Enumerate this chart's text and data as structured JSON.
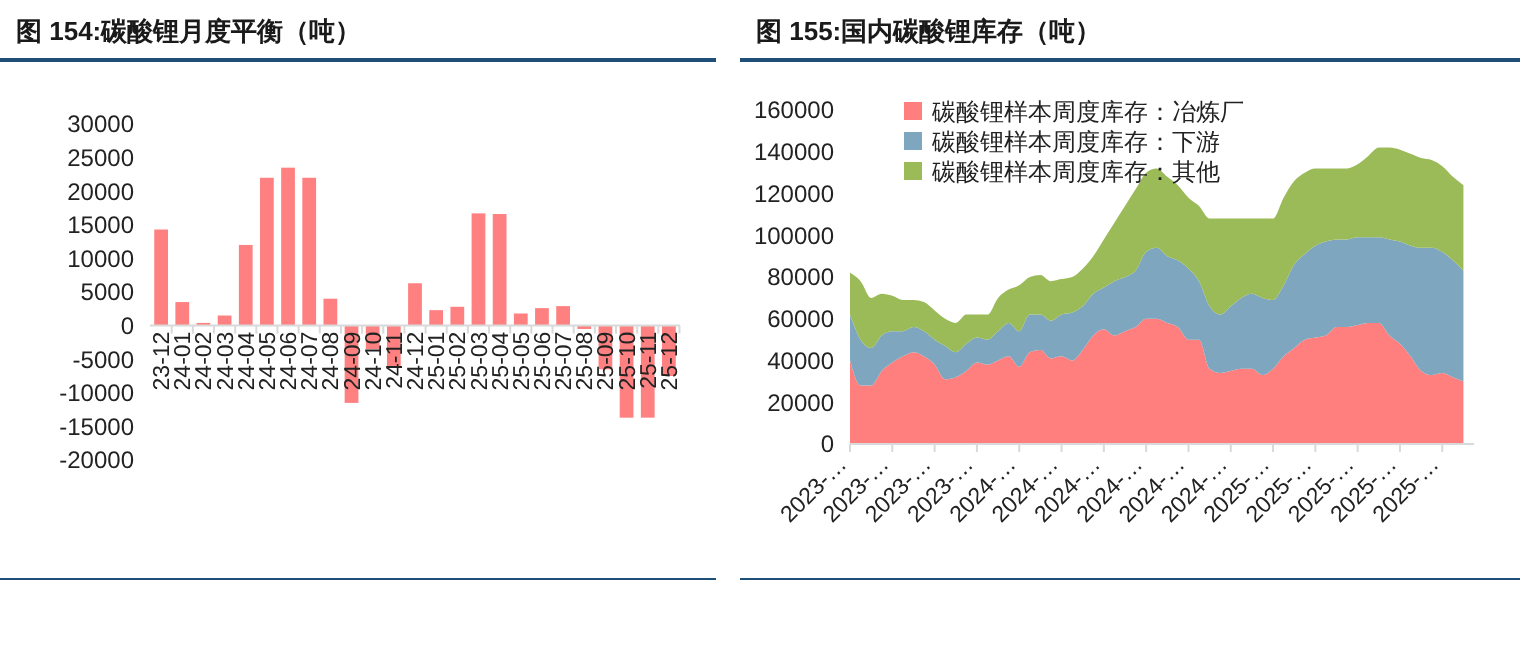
{
  "chart_data": [
    {
      "type": "bar",
      "title": "图 154:碳酸锂月度平衡（吨）",
      "categories": [
        "23-12",
        "24-01",
        "24-02",
        "24-03",
        "24-04",
        "24-05",
        "24-06",
        "24-07",
        "24-08",
        "24-09",
        "24-10",
        "24-11",
        "24-12",
        "25-01",
        "25-02",
        "25-03",
        "25-04",
        "25-05",
        "25-06",
        "25-07",
        "25-08",
        "25-09",
        "25-10",
        "25-11",
        "25-12"
      ],
      "values": [
        14300,
        3500,
        400,
        1500,
        12000,
        22000,
        23500,
        22000,
        4000,
        -11500,
        -3500,
        -6000,
        6300,
        2300,
        2800,
        16700,
        16600,
        1800,
        2600,
        2900,
        -500,
        -6500,
        -13700,
        -13700,
        -7500
      ],
      "color": "#ff8080",
      "ylim": [
        -20000,
        30000
      ],
      "yticks": [
        -20000,
        -15000,
        -10000,
        -5000,
        0,
        5000,
        10000,
        15000,
        20000,
        25000,
        30000
      ]
    },
    {
      "type": "area",
      "title": "图 155:国内碳酸锂库存（吨）",
      "stacked": true,
      "legend": "top left",
      "categories": [
        "2023-…",
        null,
        null,
        null,
        "2023-…",
        null,
        null,
        null,
        "2023-…",
        null,
        null,
        null,
        "2023-…",
        null,
        null,
        null,
        "2024-…",
        null,
        null,
        null,
        "2024-…",
        null,
        null,
        null,
        "2024-…",
        null,
        null,
        null,
        "2024-…",
        null,
        null,
        null,
        "2024-…",
        null,
        null,
        null,
        "2024-…",
        null,
        null,
        null,
        "2025-…",
        null,
        null,
        null,
        "2025-…",
        null,
        null,
        null,
        "2025-…",
        null,
        null,
        null,
        "2025-…",
        null,
        null,
        null,
        "2025-…",
        null,
        null
      ],
      "ylim": [
        0,
        160000
      ],
      "yticks": [
        0,
        20000,
        40000,
        60000,
        80000,
        100000,
        120000,
        140000,
        160000
      ],
      "series": [
        {
          "name": "碳酸锂样本周度库存：冶炼厂",
          "color": "#ff7f7f",
          "values": [
            40000,
            28000,
            28000,
            35000,
            39000,
            42000,
            44000,
            42000,
            38000,
            31000,
            32000,
            35000,
            39000,
            38000,
            40000,
            42000,
            37000,
            44000,
            45000,
            41000,
            42000,
            40000,
            45000,
            52000,
            55000,
            52000,
            54000,
            56000,
            60000,
            60000,
            58000,
            56000,
            50000,
            50000,
            36000,
            34000,
            35000,
            36000,
            36000,
            33000,
            36000,
            42000,
            46000,
            50000,
            51000,
            52000,
            56000,
            56000,
            57000,
            58000,
            58000,
            52000,
            48000,
            42000,
            35000,
            33000,
            34000,
            32000,
            30000
          ]
        },
        {
          "name": "碳酸锂样本周度库存：下游",
          "color": "#7fa6bf",
          "values": [
            22000,
            22000,
            18000,
            17000,
            15000,
            12000,
            12000,
            12000,
            12000,
            16000,
            12000,
            13000,
            12000,
            12000,
            14000,
            16000,
            17000,
            18000,
            17000,
            18000,
            20000,
            23000,
            21000,
            20000,
            20000,
            26000,
            26000,
            27000,
            32000,
            34000,
            32000,
            32000,
            34000,
            28000,
            30000,
            28000,
            31000,
            34000,
            36000,
            37000,
            33000,
            34000,
            40000,
            41000,
            44000,
            45000,
            42000,
            42000,
            42000,
            41000,
            41000,
            46000,
            49000,
            53000,
            59000,
            61000,
            58000,
            56000,
            53000
          ]
        },
        {
          "name": "碳酸锂样本周度库存：其他",
          "color": "#9bbb59",
          "values": [
            20000,
            28000,
            24000,
            20000,
            17000,
            15000,
            13000,
            14000,
            14000,
            13000,
            14000,
            14000,
            11000,
            12000,
            16000,
            16000,
            22000,
            18000,
            19000,
            19000,
            17000,
            17000,
            18000,
            18000,
            23000,
            28000,
            34000,
            39000,
            38000,
            38000,
            38000,
            36000,
            34000,
            36000,
            42000,
            46000,
            42000,
            38000,
            36000,
            38000,
            39000,
            42000,
            40000,
            39000,
            37000,
            35000,
            34000,
            34000,
            35000,
            39000,
            43000,
            44000,
            44000,
            44000,
            43000,
            42000,
            41000,
            40000,
            41000
          ]
        }
      ]
    }
  ]
}
